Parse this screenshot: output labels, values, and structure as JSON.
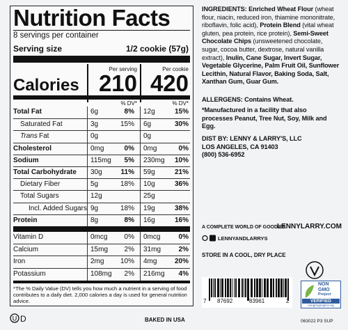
{
  "nutrition": {
    "title": "Nutrition Facts",
    "servings": "8 servings per container",
    "serving_size_label": "Serving size",
    "serving_size": "1/2 cookie (57g)",
    "per_serving": "Per serving",
    "per_cookie": "Per cookie",
    "calories_label": "Calories",
    "calories_serving": "210",
    "calories_cookie": "420",
    "dv_serving": "% DV*",
    "dv_cookie": "% DV*",
    "rows": [
      {
        "name": "Total Fat",
        "serving": "6g",
        "serving_dv": "8%",
        "cookie": "12g",
        "cookie_dv": "15%"
      },
      {
        "name": "Saturated Fat",
        "serving": "3g",
        "serving_dv": "15%",
        "cookie": "6g",
        "cookie_dv": "30%"
      },
      {
        "name_italic": "Trans",
        "name": "Fat",
        "serving": "0g",
        "cookie": "0g"
      },
      {
        "name": "Cholesterol",
        "serving": "0mg",
        "serving_dv": "0%",
        "cookie": "0mg",
        "cookie_dv": "0%"
      },
      {
        "name": "Sodium",
        "serving": "115mg",
        "serving_dv": "5%",
        "cookie": "230mg",
        "cookie_dv": "10%"
      },
      {
        "name": "Total Carbohydrate",
        "serving": "30g",
        "serving_dv": "11%",
        "cookie": "59g",
        "cookie_dv": "21%"
      },
      {
        "name": "Dietary Fiber",
        "serving": "5g",
        "serving_dv": "18%",
        "cookie": "10g",
        "cookie_dv": "36%"
      },
      {
        "name": "Total Sugars",
        "serving": "12g",
        "cookie": "25g"
      },
      {
        "name": "Incl. Added Sugars",
        "serving": "9g",
        "serving_dv": "18%",
        "cookie": "19g",
        "cookie_dv": "38%"
      },
      {
        "name": "Protein",
        "serving": "8g",
        "serving_dv": "8%",
        "cookie": "16g",
        "cookie_dv": "16%"
      },
      {
        "name": "Vitamin D",
        "serving": "0mcg",
        "serving_dv": "0%",
        "cookie": "0mcg",
        "cookie_dv": "0%"
      },
      {
        "name": "Calcium",
        "serving": "15mg",
        "serving_dv": "2%",
        "cookie": "31mg",
        "cookie_dv": "2%"
      },
      {
        "name": "Iron",
        "serving": "2mg",
        "serving_dv": "10%",
        "cookie": "4mg",
        "cookie_dv": "20%"
      },
      {
        "name": "Potassium",
        "serving": "108mg",
        "serving_dv": "2%",
        "cookie": "216mg",
        "cookie_dv": "4%"
      }
    ],
    "footnote": "*The % Daily Value (DV) tells you how much a nutrient in a serving of food contributes to a daily diet. 2,000 calories a day is used for general nutrition advice."
  },
  "ingredients": [
    "INGREDIENTS:",
    "Enriched Wheat Flour",
    "(wheat flour, niacin, reduced iron, thiamine mononitrate, riboflavin, folic acid),",
    "Protein Blend",
    "(vital wheat gluten, pea protein, rice protein),",
    "Semi-Sweet Chocolate Chips",
    "(unsweetened chocolate, sugar, cocoa butter, dextrose, natural vanilla extract),",
    "Inulin, Cane Sugar, Invert Sugar, Vegetable Glycerine, Palm Fruit Oil, Sunflower Lecithin, Natural Flavor, Baking Soda, Salt, Xanthan Gum, Guar Gum."
  ],
  "allergens": "ALLERGENS: Contains Wheat.",
  "facility": "*Manufactured in a facility that also processes Peanut, Tree Nut, Soy, Milk and Egg.",
  "distributor": [
    "DIST BY: LENNY & LARRY'S, LLC",
    "LOS ANGELES, CA 91403",
    "(800) 536-6952"
  ],
  "tagline": "A COMPLETE WORLD OF GOODIES",
  "website": "LENNYLARRY.COM",
  "social": "LENNYANDLARRYS",
  "storage": "STORE IN A COOL, DRY PLACE",
  "barcode": [
    "7",
    "87692",
    "83961",
    "2"
  ],
  "non_gmo": {
    "line1": "NON",
    "line2": "GMO",
    "line3": "Project",
    "verified": "VERIFIED",
    "url": "nongmoproject.org"
  },
  "kosher": "D",
  "origin": "BAKED IN USA",
  "code": "063022 P3 SUP"
}
